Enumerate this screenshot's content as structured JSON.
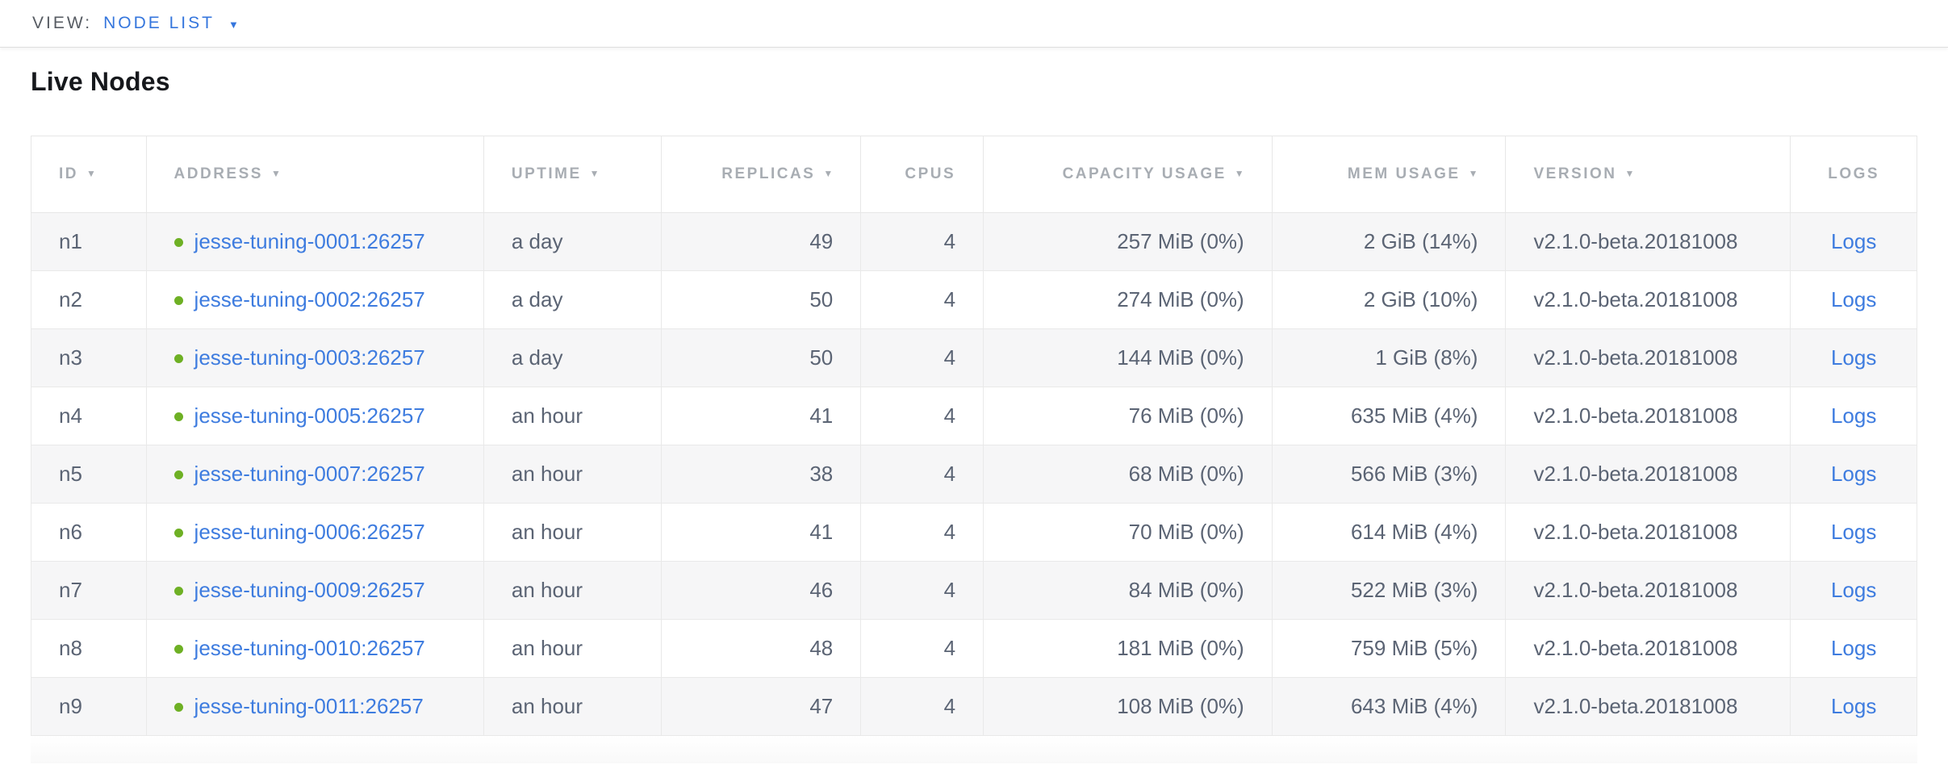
{
  "topbar": {
    "view_label": "VIEW:",
    "view_value": "NODE LIST"
  },
  "page": {
    "title": "Live Nodes"
  },
  "colors": {
    "accent_blue": "#3576dd",
    "link_blue": "#3e7cdf",
    "status_live_green": "#6eb024",
    "header_gray": "#a8adb3",
    "row_text": "#5b6474",
    "row_stripe": "#f6f6f7",
    "border": "#e9e9e9"
  },
  "table": {
    "columns": [
      {
        "key": "id",
        "label": "ID",
        "sortable": true,
        "align": "left",
        "width": "6.1%"
      },
      {
        "key": "address",
        "label": "ADDRESS",
        "sortable": true,
        "align": "left",
        "width": "17.9%",
        "type": "address"
      },
      {
        "key": "uptime",
        "label": "UPTIME",
        "sortable": true,
        "align": "left",
        "width": "9.4%"
      },
      {
        "key": "replicas",
        "label": "REPLICAS",
        "sortable": true,
        "align": "right",
        "width": "10.6%"
      },
      {
        "key": "cpus",
        "label": "CPUS",
        "sortable": false,
        "align": "right",
        "width": "6.5%"
      },
      {
        "key": "capacity_usage",
        "label": "CAPACITY USAGE",
        "sortable": true,
        "align": "right",
        "width": "15.3%"
      },
      {
        "key": "mem_usage",
        "label": "MEM USAGE",
        "sortable": true,
        "align": "right",
        "width": "12.4%"
      },
      {
        "key": "version",
        "label": "VERSION",
        "sortable": true,
        "align": "left",
        "width": "15.1%"
      },
      {
        "key": "logs",
        "label": "LOGS",
        "sortable": false,
        "align": "center",
        "width": "6.7%",
        "type": "link"
      }
    ],
    "rows": [
      {
        "id": "n1",
        "status": "live",
        "address": "jesse-tuning-0001:26257",
        "uptime": "a day",
        "replicas": "49",
        "cpus": "4",
        "capacity_usage": "257 MiB (0%)",
        "mem_usage": "2 GiB (14%)",
        "version": "v2.1.0-beta.20181008",
        "logs": "Logs"
      },
      {
        "id": "n2",
        "status": "live",
        "address": "jesse-tuning-0002:26257",
        "uptime": "a day",
        "replicas": "50",
        "cpus": "4",
        "capacity_usage": "274 MiB (0%)",
        "mem_usage": "2 GiB (10%)",
        "version": "v2.1.0-beta.20181008",
        "logs": "Logs"
      },
      {
        "id": "n3",
        "status": "live",
        "address": "jesse-tuning-0003:26257",
        "uptime": "a day",
        "replicas": "50",
        "cpus": "4",
        "capacity_usage": "144 MiB (0%)",
        "mem_usage": "1 GiB (8%)",
        "version": "v2.1.0-beta.20181008",
        "logs": "Logs"
      },
      {
        "id": "n4",
        "status": "live",
        "address": "jesse-tuning-0005:26257",
        "uptime": "an hour",
        "replicas": "41",
        "cpus": "4",
        "capacity_usage": "76 MiB (0%)",
        "mem_usage": "635 MiB (4%)",
        "version": "v2.1.0-beta.20181008",
        "logs": "Logs"
      },
      {
        "id": "n5",
        "status": "live",
        "address": "jesse-tuning-0007:26257",
        "uptime": "an hour",
        "replicas": "38",
        "cpus": "4",
        "capacity_usage": "68 MiB (0%)",
        "mem_usage": "566 MiB (3%)",
        "version": "v2.1.0-beta.20181008",
        "logs": "Logs"
      },
      {
        "id": "n6",
        "status": "live",
        "address": "jesse-tuning-0006:26257",
        "uptime": "an hour",
        "replicas": "41",
        "cpus": "4",
        "capacity_usage": "70 MiB (0%)",
        "mem_usage": "614 MiB (4%)",
        "version": "v2.1.0-beta.20181008",
        "logs": "Logs"
      },
      {
        "id": "n7",
        "status": "live",
        "address": "jesse-tuning-0009:26257",
        "uptime": "an hour",
        "replicas": "46",
        "cpus": "4",
        "capacity_usage": "84 MiB (0%)",
        "mem_usage": "522 MiB (3%)",
        "version": "v2.1.0-beta.20181008",
        "logs": "Logs"
      },
      {
        "id": "n8",
        "status": "live",
        "address": "jesse-tuning-0010:26257",
        "uptime": "an hour",
        "replicas": "48",
        "cpus": "4",
        "capacity_usage": "181 MiB (0%)",
        "mem_usage": "759 MiB (5%)",
        "version": "v2.1.0-beta.20181008",
        "logs": "Logs"
      },
      {
        "id": "n9",
        "status": "live",
        "address": "jesse-tuning-0011:26257",
        "uptime": "an hour",
        "replicas": "47",
        "cpus": "4",
        "capacity_usage": "108 MiB (0%)",
        "mem_usage": "643 MiB (4%)",
        "version": "v2.1.0-beta.20181008",
        "logs": "Logs"
      }
    ]
  }
}
